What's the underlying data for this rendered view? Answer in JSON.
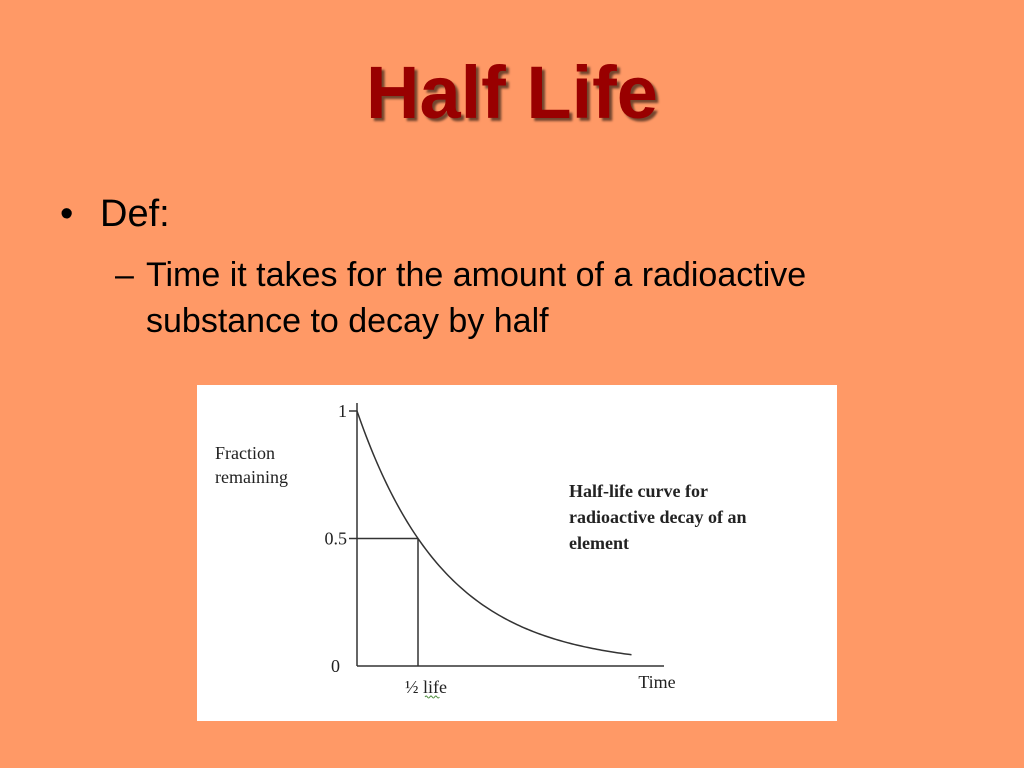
{
  "slide": {
    "title": "Half Life",
    "bullets": [
      {
        "text": "Def:",
        "sub": [
          "Time it takes for the amount of a radioactive substance to decay by half"
        ]
      }
    ]
  },
  "colors": {
    "background": "#ff9966",
    "title": "#990000",
    "chart_background": "#ffffff",
    "curve": "#333333"
  },
  "chart_data": {
    "type": "line",
    "title": "Half-life curve for radioactive decay of an element",
    "xlabel": "Time",
    "ylabel": "Fraction remaining",
    "y_ticks": [
      {
        "value": 0,
        "label": "0"
      },
      {
        "value": 0.5,
        "label": "0.5"
      },
      {
        "value": 1,
        "label": "1"
      }
    ],
    "x_ticks": [
      {
        "value": 1,
        "label": "½ life"
      }
    ],
    "ylim": [
      0,
      1
    ],
    "xlim": [
      0,
      5
    ],
    "grid": false,
    "legend": "none",
    "series": [
      {
        "x": [
          0,
          0.25,
          0.5,
          0.75,
          1,
          1.5,
          2,
          2.5,
          3,
          3.5,
          4,
          4.5
        ],
        "y": [
          1,
          0.841,
          0.707,
          0.595,
          0.5,
          0.354,
          0.25,
          0.177,
          0.125,
          0.088,
          0.0625,
          0.044
        ]
      }
    ],
    "reference_point": {
      "x": 1,
      "y": 0.5
    }
  }
}
